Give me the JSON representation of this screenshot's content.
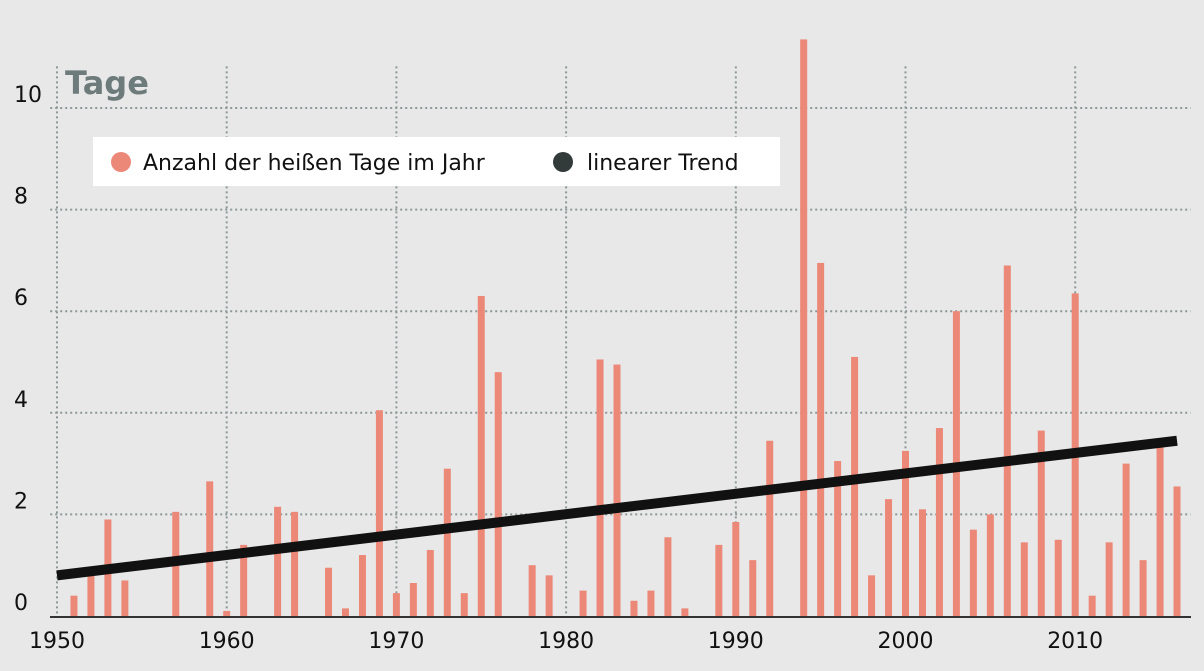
{
  "chart_data": {
    "type": "bar",
    "title": "Tage",
    "x": [
      1950,
      1951,
      1952,
      1953,
      1954,
      1955,
      1956,
      1957,
      1958,
      1959,
      1960,
      1961,
      1962,
      1963,
      1964,
      1965,
      1966,
      1967,
      1968,
      1969,
      1970,
      1971,
      1972,
      1973,
      1974,
      1975,
      1976,
      1977,
      1978,
      1979,
      1980,
      1981,
      1982,
      1983,
      1984,
      1985,
      1986,
      1987,
      1988,
      1989,
      1990,
      1991,
      1992,
      1993,
      1994,
      1995,
      1996,
      1997,
      1998,
      1999,
      2000,
      2001,
      2002,
      2003,
      2004,
      2005,
      2006,
      2007,
      2008,
      2009,
      2010,
      2011,
      2012,
      2013,
      2014,
      2015,
      2016
    ],
    "series": [
      {
        "name": "Anzahl der heißen Tage im Jahr",
        "color": "#ec8878",
        "type": "bar",
        "values": [
          0,
          0.4,
          0.8,
          1.9,
          0.7,
          0,
          0,
          2.05,
          0,
          2.65,
          0.1,
          1.4,
          0,
          2.15,
          2.05,
          0,
          0.95,
          0.15,
          1.2,
          4.05,
          0.45,
          0.65,
          1.3,
          2.9,
          0.45,
          6.3,
          4.8,
          0,
          1.0,
          0.8,
          0,
          0.5,
          5.05,
          4.95,
          0.3,
          0.5,
          1.55,
          0.15,
          0,
          1.4,
          1.85,
          1.1,
          3.45,
          0,
          11.35,
          6.95,
          3.05,
          5.1,
          0.8,
          2.3,
          3.25,
          2.1,
          3.7,
          6.0,
          1.7,
          2.0,
          6.9,
          1.45,
          3.65,
          1.5,
          6.35,
          0.4,
          1.45,
          3.0,
          1.1,
          3.35,
          2.55
        ]
      },
      {
        "name": "linearer Trend",
        "color": "#111111",
        "type": "line",
        "x": [
          1950,
          2016
        ],
        "values": [
          0.8,
          3.45
        ]
      }
    ],
    "xlim": [
      1949.6,
      2016.8
    ],
    "xticks": [
      1950,
      1960,
      1970,
      1980,
      1990,
      2000,
      2010
    ],
    "ylim": [
      0,
      12
    ],
    "yticks": [
      0,
      2,
      4,
      6,
      8,
      10
    ],
    "grid": true,
    "legend": "upper left"
  }
}
